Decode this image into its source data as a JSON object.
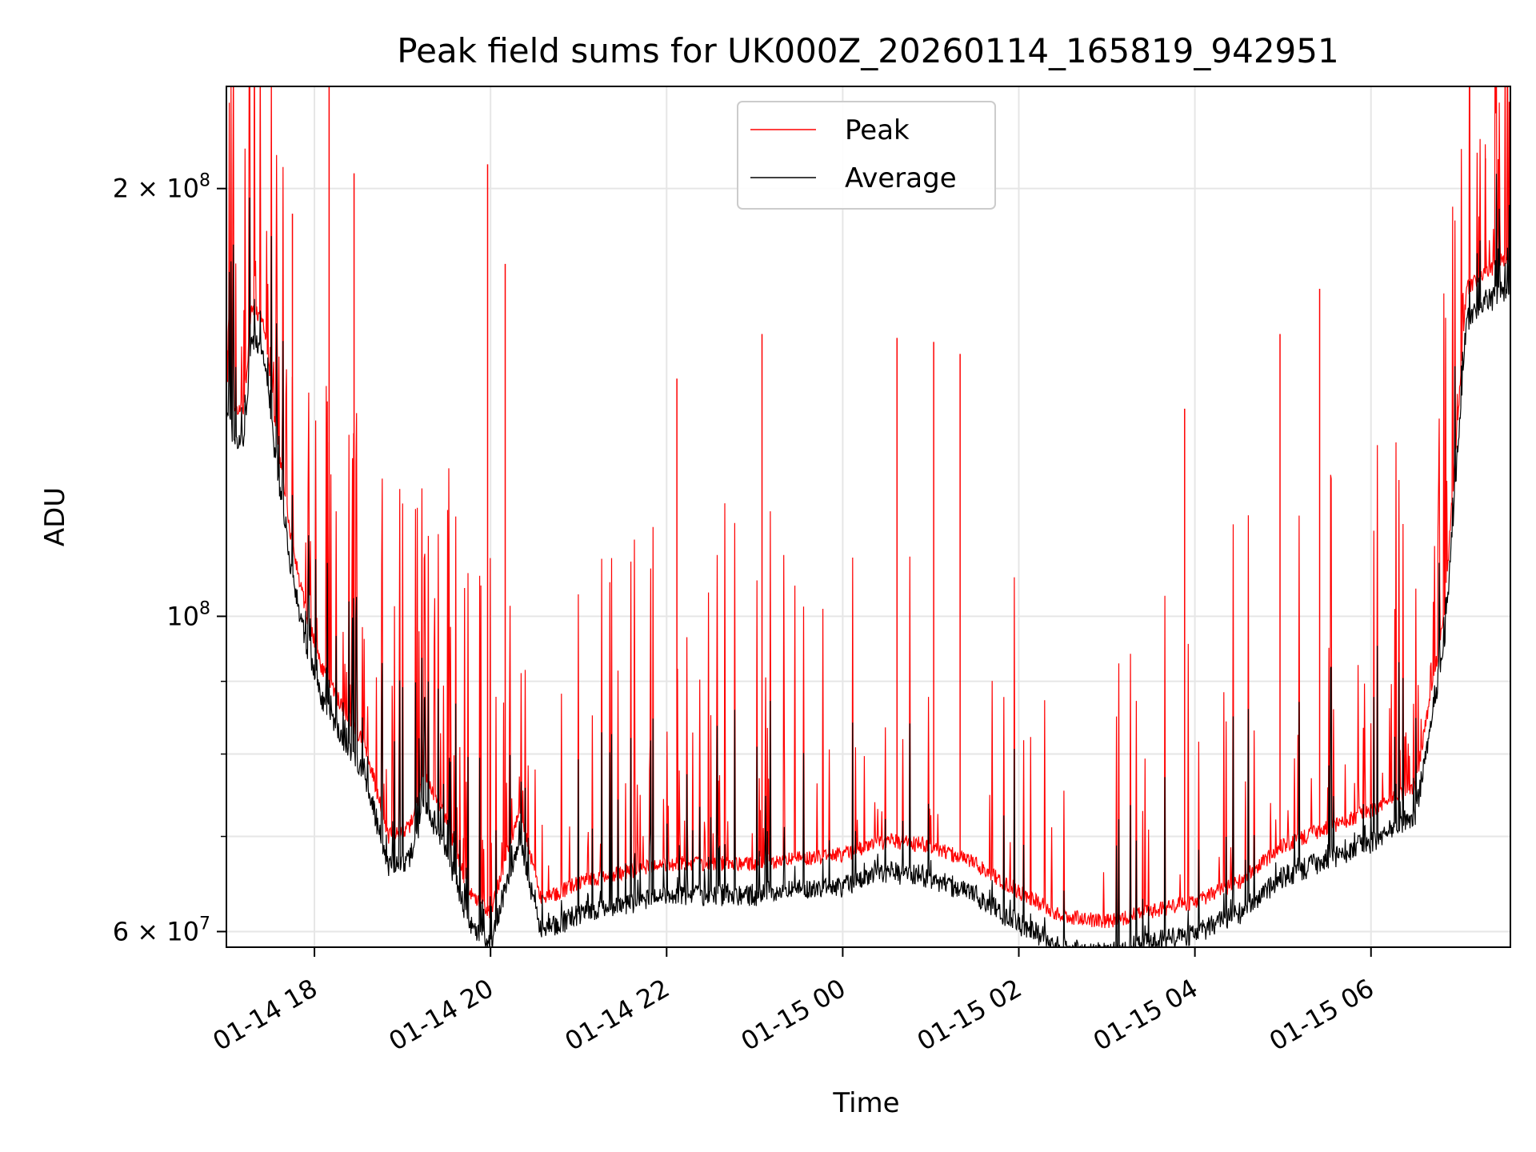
{
  "chart_data": {
    "type": "line",
    "title": "Peak field sums for UK000Z_20260114_165819_942951",
    "xlabel": "Time",
    "ylabel": "ADU",
    "yscale": "log",
    "xlim": [
      "2026-01-14T17:00",
      "2026-01-15T07:35"
    ],
    "ylim": [
      58500000,
      236000000
    ],
    "grid": true,
    "legend_position": "top-center",
    "x_ticks": [
      {
        "t": "2026-01-14T18:00",
        "label": "01-14 18"
      },
      {
        "t": "2026-01-14T20:00",
        "label": "01-14 20"
      },
      {
        "t": "2026-01-14T22:00",
        "label": "01-14 22"
      },
      {
        "t": "2026-01-15T00:00",
        "label": "01-15 00"
      },
      {
        "t": "2026-01-15T02:00",
        "label": "01-15 02"
      },
      {
        "t": "2026-01-15T04:00",
        "label": "01-15 04"
      },
      {
        "t": "2026-01-15T06:00",
        "label": "01-15 06"
      }
    ],
    "y_ticks_major": [
      {
        "value": 60000000,
        "base": "6 × 10",
        "exp": "7"
      },
      {
        "value": 100000000,
        "base": "10",
        "exp": "8"
      },
      {
        "value": 200000000,
        "base": "2 × 10",
        "exp": "8"
      }
    ],
    "y_ticks_minor": [
      70000000,
      80000000,
      90000000
    ],
    "series": [
      {
        "name": "Peak",
        "color": "#ff0000",
        "baseline": [
          {
            "t": "2026-01-14T17:00",
            "v": 147000000
          },
          {
            "t": "2026-01-14T17:05",
            "v": 140000000
          },
          {
            "t": "2026-01-14T17:12",
            "v": 140000000
          },
          {
            "t": "2026-01-14T17:17",
            "v": 165000000
          },
          {
            "t": "2026-01-14T17:25",
            "v": 162000000
          },
          {
            "t": "2026-01-14T17:35",
            "v": 132000000
          },
          {
            "t": "2026-01-14T17:45",
            "v": 112000000
          },
          {
            "t": "2026-01-14T17:55",
            "v": 100000000
          },
          {
            "t": "2026-01-14T18:05",
            "v": 92000000
          },
          {
            "t": "2026-01-14T18:20",
            "v": 86000000
          },
          {
            "t": "2026-01-14T18:35",
            "v": 81000000
          },
          {
            "t": "2026-01-14T18:50",
            "v": 70000000
          },
          {
            "t": "2026-01-14T19:05",
            "v": 71000000
          },
          {
            "t": "2026-01-14T19:15",
            "v": 77000000
          },
          {
            "t": "2026-01-14T19:30",
            "v": 72000000
          },
          {
            "t": "2026-01-14T19:45",
            "v": 64000000
          },
          {
            "t": "2026-01-14T20:00",
            "v": 62000000
          },
          {
            "t": "2026-01-14T20:20",
            "v": 73000000
          },
          {
            "t": "2026-01-14T20:35",
            "v": 63000000
          },
          {
            "t": "2026-01-14T21:00",
            "v": 65000000
          },
          {
            "t": "2026-01-14T21:30",
            "v": 66000000
          },
          {
            "t": "2026-01-14T22:00",
            "v": 67000000
          },
          {
            "t": "2026-01-14T23:00",
            "v": 67000000
          },
          {
            "t": "2026-01-15T00:00",
            "v": 68000000
          },
          {
            "t": "2026-01-15T00:30",
            "v": 69500000
          },
          {
            "t": "2026-01-15T01:00",
            "v": 69000000
          },
          {
            "t": "2026-01-15T01:30",
            "v": 67000000
          },
          {
            "t": "2026-01-15T02:00",
            "v": 64000000
          },
          {
            "t": "2026-01-15T02:30",
            "v": 61500000
          },
          {
            "t": "2026-01-15T03:00",
            "v": 61000000
          },
          {
            "t": "2026-01-15T03:30",
            "v": 62000000
          },
          {
            "t": "2026-01-15T04:00",
            "v": 63000000
          },
          {
            "t": "2026-01-15T04:30",
            "v": 65000000
          },
          {
            "t": "2026-01-15T05:00",
            "v": 69000000
          },
          {
            "t": "2026-01-15T05:30",
            "v": 71000000
          },
          {
            "t": "2026-01-15T06:00",
            "v": 73000000
          },
          {
            "t": "2026-01-15T06:30",
            "v": 76000000
          },
          {
            "t": "2026-01-15T06:50",
            "v": 100000000
          },
          {
            "t": "2026-01-15T07:05",
            "v": 170000000
          },
          {
            "t": "2026-01-15T07:35",
            "v": 180000000
          }
        ],
        "spikes": [
          {
            "t": "2026-01-14T18:10",
            "v": 236000000
          },
          {
            "t": "2026-01-14T18:27",
            "v": 205000000
          },
          {
            "t": "2026-01-14T17:45",
            "v": 192000000
          },
          {
            "t": "2026-01-14T19:58",
            "v": 208000000
          },
          {
            "t": "2026-01-14T20:10",
            "v": 177000000
          },
          {
            "t": "2026-01-14T22:07",
            "v": 147000000
          },
          {
            "t": "2026-01-14T23:05",
            "v": 158000000
          },
          {
            "t": "2026-01-15T00:37",
            "v": 157000000
          },
          {
            "t": "2026-01-15T01:02",
            "v": 156000000
          },
          {
            "t": "2026-01-15T01:20",
            "v": 153000000
          },
          {
            "t": "2026-01-15T03:53",
            "v": 140000000
          },
          {
            "t": "2026-01-15T04:58",
            "v": 158000000
          },
          {
            "t": "2026-01-15T05:25",
            "v": 170000000
          },
          {
            "t": "2026-01-15T07:18",
            "v": 210000000
          }
        ]
      },
      {
        "name": "Average",
        "color": "#000000",
        "offset_ratio": 0.95
      }
    ]
  }
}
